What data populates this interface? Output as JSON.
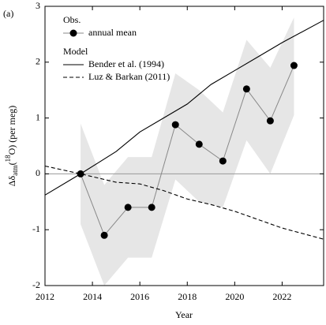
{
  "chart_data": {
    "type": "line",
    "panel_label": "(a)",
    "xlabel": "Year",
    "ylabel_parts": [
      "Δδ",
      "atm",
      "(",
      "18",
      "O)  (per meg)"
    ],
    "legend_groups": [
      "Obs.",
      "Model"
    ],
    "xlim": [
      2012,
      2023.75
    ],
    "xticks": [
      2012,
      2014,
      2016,
      2018,
      2020,
      2022
    ],
    "ylim": [
      -2,
      3
    ],
    "yticks": [
      -2,
      -1,
      0,
      1,
      2,
      3
    ],
    "band": {
      "color": "#e6e6e6",
      "x": [
        2013.5,
        2014.5,
        2015.5,
        2016.5,
        2017.5,
        2018.5,
        2019.5,
        2020.5,
        2021.5,
        2022.5
      ],
      "upper": [
        0.9,
        -0.2,
        0.3,
        0.3,
        1.8,
        1.5,
        1.1,
        2.4,
        1.9,
        2.8
      ],
      "lower": [
        -0.9,
        -2.0,
        -1.5,
        -1.5,
        -0.1,
        -0.5,
        -0.6,
        0.6,
        0.0,
        1.05
      ]
    },
    "series": [
      {
        "name": "annual mean",
        "color": "#000000",
        "line_color": "#888888",
        "style": "marker",
        "x": [
          2013.5,
          2014.5,
          2015.5,
          2016.5,
          2017.5,
          2018.5,
          2019.5,
          2020.5,
          2021.5,
          2022.5
        ],
        "values": [
          0,
          -1.1,
          -0.6,
          -0.6,
          0.88,
          0.53,
          0.23,
          1.52,
          0.95,
          1.94
        ]
      },
      {
        "name": "Bender et al. (1994)",
        "color": "#000000",
        "style": "solid",
        "x": [
          2012,
          2013.5,
          2015,
          2016,
          2017,
          2018,
          2019,
          2020,
          2021,
          2022,
          2023.75
        ],
        "values": [
          -0.38,
          0,
          0.4,
          0.75,
          1.0,
          1.25,
          1.6,
          1.85,
          2.1,
          2.35,
          2.75
        ]
      },
      {
        "name": "Luz & Barkan (2011)",
        "color": "#000000",
        "style": "dashed",
        "x": [
          2012,
          2013.5,
          2015,
          2016,
          2017,
          2018,
          2019,
          2020,
          2021,
          2022,
          2023.75
        ],
        "values": [
          0.14,
          0,
          -0.15,
          -0.18,
          -0.3,
          -0.45,
          -0.55,
          -0.67,
          -0.82,
          -0.97,
          -1.17
        ]
      }
    ]
  }
}
